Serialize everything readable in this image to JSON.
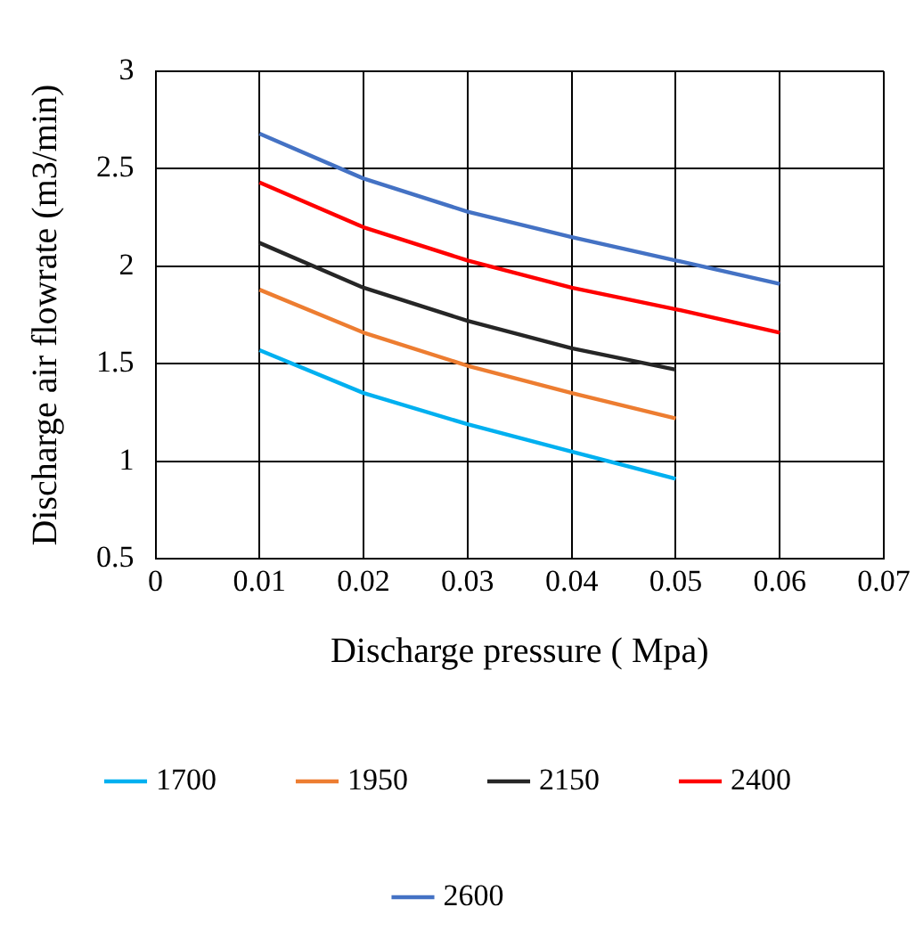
{
  "chart_data": {
    "type": "line",
    "xlabel": "Discharge pressure ( Mpa)",
    "ylabel": "Discharge air flowrate (m3/min)",
    "x": [
      0.01,
      0.02,
      0.03,
      0.04,
      0.05,
      0.06
    ],
    "series": [
      {
        "name": "1700",
        "color": "#00b0f0",
        "values": [
          1.57,
          1.35,
          1.19,
          1.05,
          0.91,
          null
        ]
      },
      {
        "name": "1950",
        "color": "#ed7d31",
        "values": [
          1.88,
          1.66,
          1.49,
          1.35,
          1.22,
          null
        ]
      },
      {
        "name": "2150",
        "color": "#262626",
        "values": [
          2.12,
          1.89,
          1.72,
          1.58,
          1.47,
          null
        ]
      },
      {
        "name": "2400",
        "color": "#ff0000",
        "values": [
          2.43,
          2.2,
          2.03,
          1.89,
          1.78,
          1.66
        ]
      },
      {
        "name": "2600",
        "color": "#4472c4",
        "values": [
          2.68,
          2.45,
          2.28,
          2.15,
          2.03,
          1.91
        ]
      }
    ],
    "xlim": [
      0,
      0.07
    ],
    "xticks": [
      0,
      0.01,
      0.02,
      0.03,
      0.04,
      0.05,
      0.06,
      0.07
    ],
    "ylim": [
      0.5,
      3
    ],
    "yticks": [
      0.5,
      1,
      1.5,
      2,
      2.5,
      3
    ],
    "grid": true,
    "legend": "bottom"
  }
}
